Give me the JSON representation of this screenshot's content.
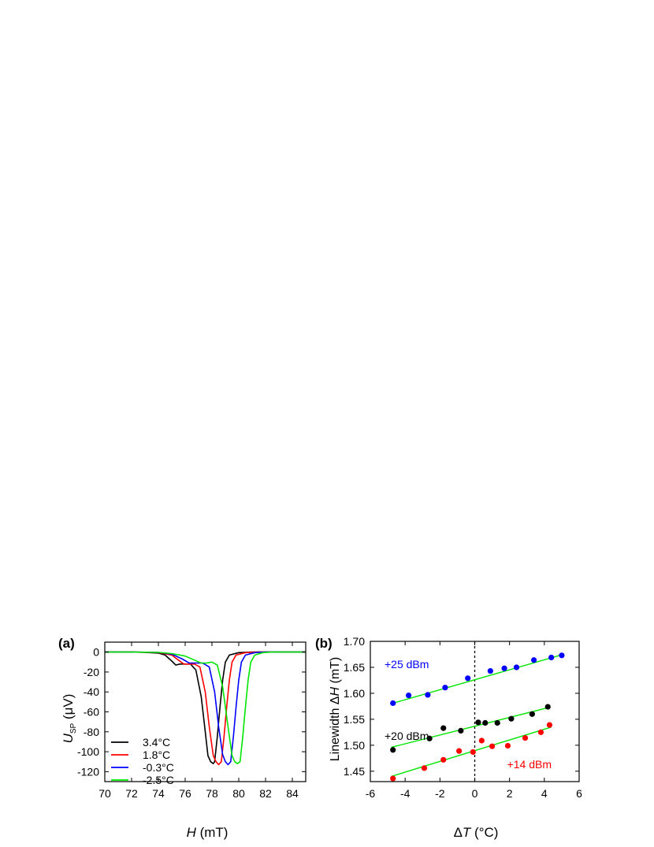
{
  "panels": [
    {
      "panel_label": "(a)",
      "xlabel_italic": "H",
      "xlabel_rest": " (mT)",
      "ylabel_italic": "U",
      "ylabel_sub": "SP",
      "ylabel_rest": " (μV)"
    },
    {
      "panel_label": "(b)",
      "xlabel_italic": "T",
      "xlabel_prefix": "Δ",
      "xlabel_rest": " (°C)",
      "ylabel_prefix": "Linewidth Δ",
      "ylabel_italic": "H",
      "ylabel_rest": " (mT)"
    }
  ],
  "chart_data": [
    {
      "type": "line",
      "xlim": [
        70,
        85
      ],
      "ylim": [
        -130,
        10
      ],
      "xticks": [
        70,
        72,
        74,
        76,
        78,
        80,
        82,
        84
      ],
      "yticks": [
        0,
        -20,
        -40,
        -60,
        -80,
        -100,
        -120
      ],
      "legend_position": "bottom-left",
      "series": [
        {
          "name": "3.4°C",
          "color": "#000000",
          "points": [
            [
              70,
              0
            ],
            [
              72,
              0
            ],
            [
              73,
              -0.2
            ],
            [
              74,
              -1
            ],
            [
              74.5,
              -3
            ],
            [
              75,
              -9
            ],
            [
              75.3,
              -13
            ],
            [
              75.6,
              -12
            ],
            [
              76,
              -12
            ],
            [
              76.4,
              -12
            ],
            [
              76.8,
              -18
            ],
            [
              77.2,
              -45
            ],
            [
              77.5,
              -80
            ],
            [
              77.7,
              -104
            ],
            [
              77.9,
              -110
            ],
            [
              78.1,
              -112
            ],
            [
              78.2,
              -110
            ],
            [
              78.4,
              -85
            ],
            [
              78.6,
              -55
            ],
            [
              78.8,
              -28
            ],
            [
              79,
              -10
            ],
            [
              79.3,
              -3
            ],
            [
              80,
              -0.5
            ],
            [
              81,
              0
            ],
            [
              85,
              0
            ]
          ]
        },
        {
          "name": "1.8°C",
          "color": "#ff0000",
          "points": [
            [
              70,
              0
            ],
            [
              72,
              0
            ],
            [
              73,
              -0.1
            ],
            [
              74,
              -0.5
            ],
            [
              75,
              -3
            ],
            [
              75.5,
              -8
            ],
            [
              75.9,
              -12
            ],
            [
              76.3,
              -12
            ],
            [
              76.7,
              -12
            ],
            [
              77.1,
              -15
            ],
            [
              77.5,
              -40
            ],
            [
              77.8,
              -75
            ],
            [
              78.1,
              -104
            ],
            [
              78.3,
              -110
            ],
            [
              78.5,
              -113
            ],
            [
              78.7,
              -110
            ],
            [
              78.9,
              -85
            ],
            [
              79.1,
              -55
            ],
            [
              79.3,
              -28
            ],
            [
              79.5,
              -10
            ],
            [
              79.8,
              -3
            ],
            [
              80.5,
              -0.5
            ],
            [
              81.5,
              0
            ],
            [
              85,
              0
            ]
          ]
        },
        {
          "name": "-0.3°C",
          "color": "#0000ff",
          "points": [
            [
              70,
              0
            ],
            [
              72,
              0
            ],
            [
              74,
              -0.3
            ],
            [
              75,
              -2
            ],
            [
              75.8,
              -7
            ],
            [
              76.3,
              -11
            ],
            [
              76.8,
              -11
            ],
            [
              77.3,
              -11
            ],
            [
              77.8,
              -15
            ],
            [
              78.2,
              -40
            ],
            [
              78.5,
              -75
            ],
            [
              78.8,
              -103
            ],
            [
              79,
              -110
            ],
            [
              79.2,
              -113
            ],
            [
              79.4,
              -110
            ],
            [
              79.6,
              -85
            ],
            [
              79.8,
              -55
            ],
            [
              80,
              -28
            ],
            [
              80.2,
              -10
            ],
            [
              80.5,
              -3
            ],
            [
              81.2,
              -0.5
            ],
            [
              82,
              0
            ],
            [
              85,
              0
            ]
          ]
        },
        {
          "name": "-2.5°C",
          "color": "#00e600",
          "points": [
            [
              70,
              0
            ],
            [
              72,
              0
            ],
            [
              74,
              -0.3
            ],
            [
              75,
              -1.5
            ],
            [
              76,
              -4
            ],
            [
              76.7,
              -8
            ],
            [
              77.2,
              -11
            ],
            [
              77.6,
              -11
            ],
            [
              78,
              -10
            ],
            [
              78.4,
              -13
            ],
            [
              78.8,
              -35
            ],
            [
              79.2,
              -75
            ],
            [
              79.5,
              -104
            ],
            [
              79.7,
              -110
            ],
            [
              79.9,
              -112
            ],
            [
              80.1,
              -110
            ],
            [
              80.3,
              -85
            ],
            [
              80.5,
              -55
            ],
            [
              80.7,
              -28
            ],
            [
              80.9,
              -10
            ],
            [
              81.2,
              -3
            ],
            [
              81.8,
              -0.5
            ],
            [
              82.5,
              0
            ],
            [
              85,
              0
            ]
          ]
        }
      ]
    },
    {
      "type": "scatter",
      "xlim": [
        -6,
        6
      ],
      "ylim": [
        1.43,
        1.7
      ],
      "xticks": [
        -6,
        -4,
        -2,
        0,
        2,
        4,
        6
      ],
      "yticks": [
        1.45,
        1.5,
        1.55,
        1.6,
        1.65,
        1.7
      ],
      "vertical_reference_x": 0,
      "fit_line_color": "#00e600",
      "series": [
        {
          "name": "+25 dBm",
          "color": "#0000ff",
          "points": [
            [
              -4.7,
              1.581
            ],
            [
              -3.8,
              1.596
            ],
            [
              -2.7,
              1.597
            ],
            [
              -1.7,
              1.611
            ],
            [
              -0.4,
              1.629
            ],
            [
              0.9,
              1.643
            ],
            [
              1.7,
              1.648
            ],
            [
              2.4,
              1.65
            ],
            [
              3.4,
              1.664
            ],
            [
              4.4,
              1.669
            ],
            [
              5.0,
              1.673
            ]
          ],
          "fit": [
            [
              -4.8,
              1.58
            ],
            [
              5.1,
              1.675
            ]
          ]
        },
        {
          "name": "+20 dBm",
          "color": "#000000",
          "points": [
            [
              -4.7,
              1.491
            ],
            [
              -2.6,
              1.513
            ],
            [
              -1.8,
              1.533
            ],
            [
              -0.8,
              1.528
            ],
            [
              0.2,
              1.544
            ],
            [
              0.6,
              1.543
            ],
            [
              1.3,
              1.543
            ],
            [
              2.1,
              1.551
            ],
            [
              3.3,
              1.56
            ],
            [
              4.2,
              1.574
            ]
          ],
          "fit": [
            [
              -4.8,
              1.496
            ],
            [
              4.3,
              1.573
            ]
          ]
        },
        {
          "name": "+14 dBm",
          "color": "#ff0000",
          "points": [
            [
              -4.7,
              1.436
            ],
            [
              -2.9,
              1.456
            ],
            [
              -1.8,
              1.472
            ],
            [
              -0.9,
              1.489
            ],
            [
              -0.1,
              1.487
            ],
            [
              0.4,
              1.509
            ],
            [
              1.0,
              1.498
            ],
            [
              1.9,
              1.499
            ],
            [
              2.9,
              1.514
            ],
            [
              3.8,
              1.525
            ],
            [
              4.3,
              1.539
            ]
          ],
          "fit": [
            [
              -4.8,
              1.44
            ],
            [
              4.4,
              1.535
            ]
          ]
        }
      ]
    }
  ]
}
